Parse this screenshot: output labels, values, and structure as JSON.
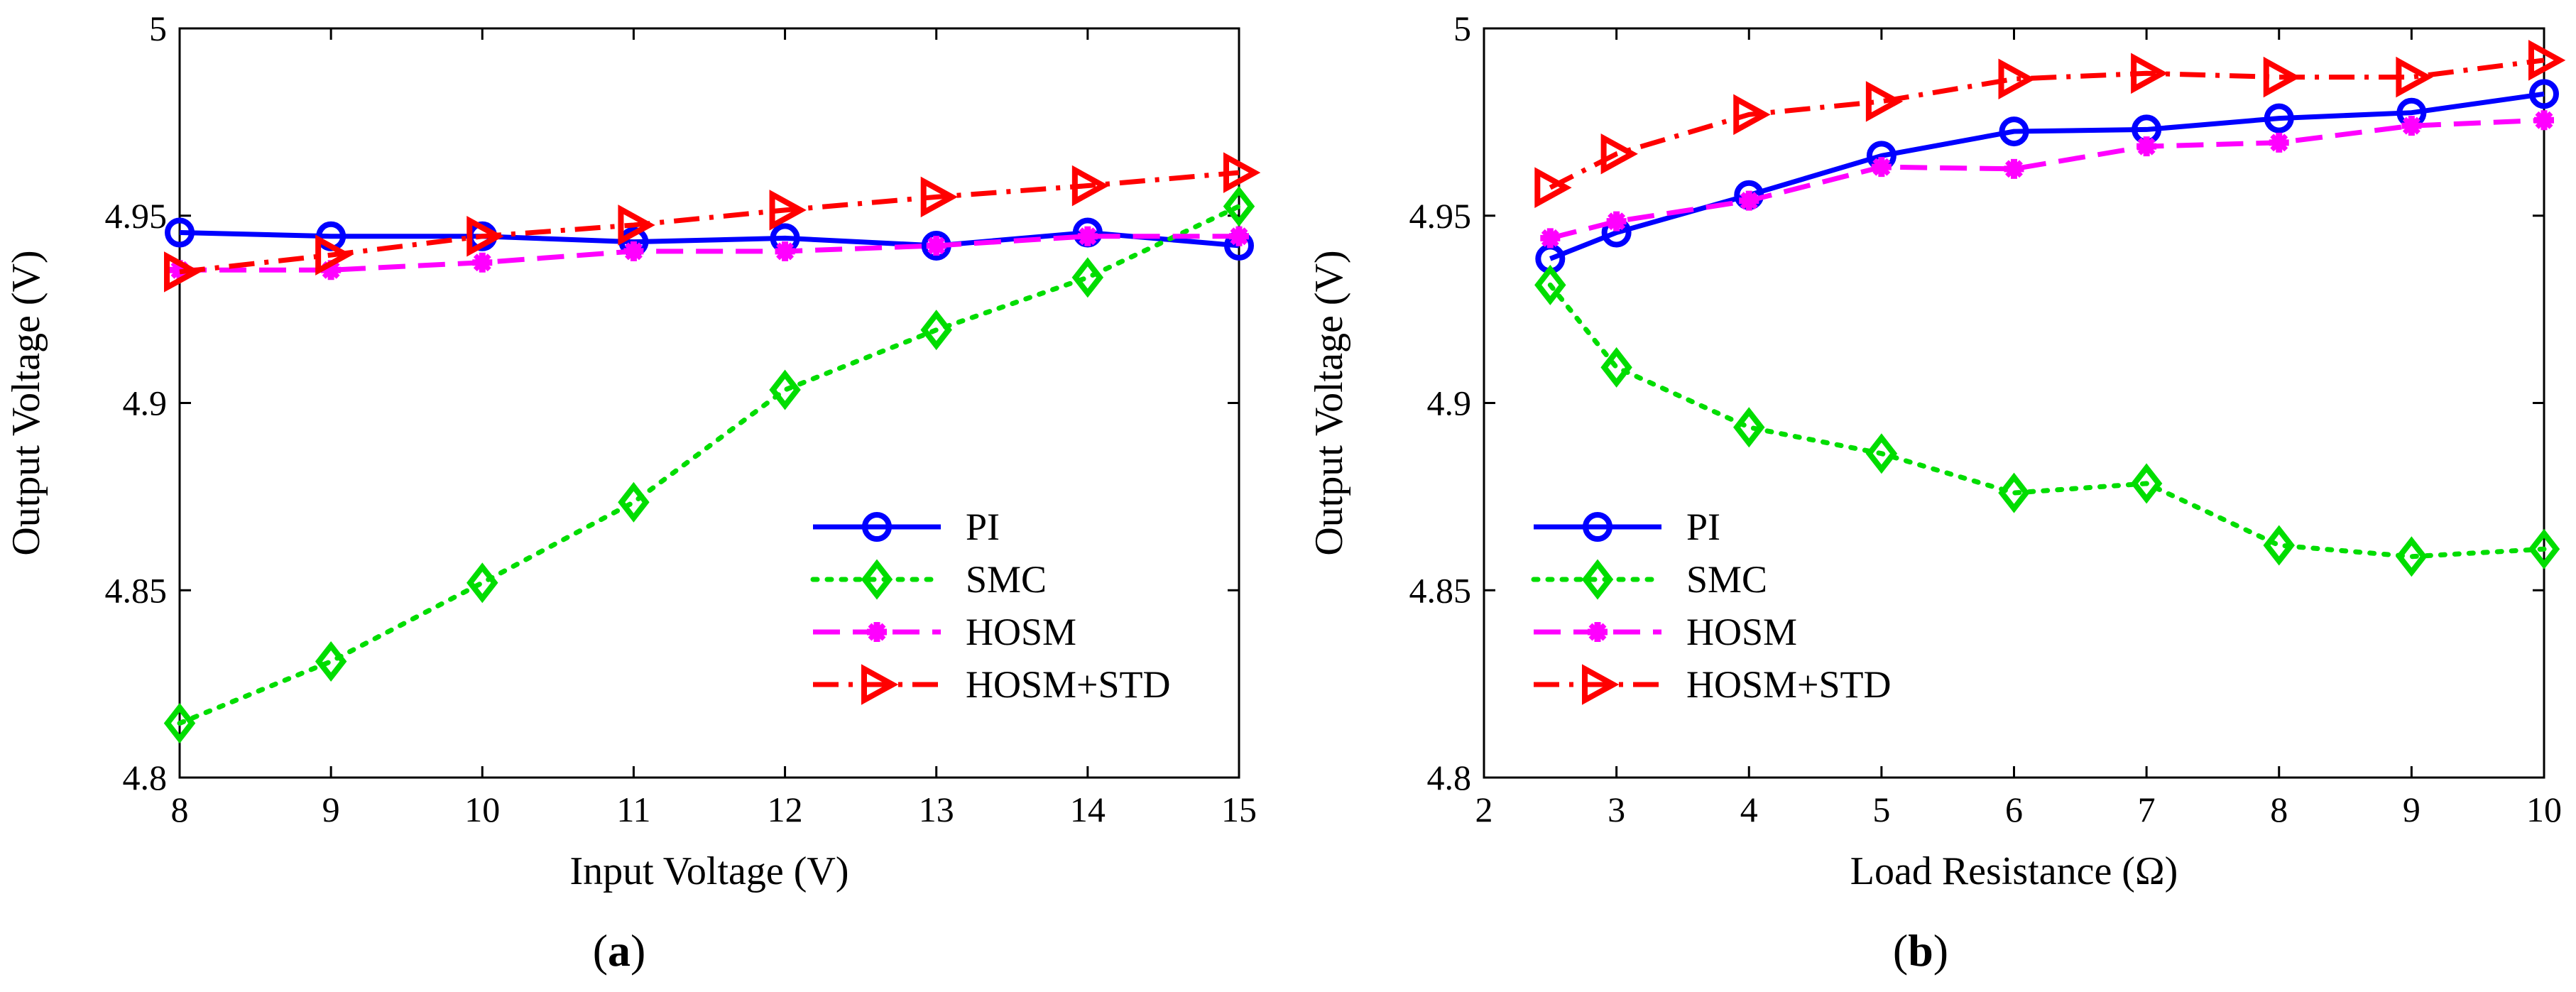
{
  "chart_data": [
    {
      "type": "line",
      "caption_prefix": "(",
      "caption_letter": "a",
      "caption_suffix": ")",
      "xlabel": "Input Voltage (V)",
      "ylabel": "Output Voltage (V)",
      "xlim": [
        8,
        15
      ],
      "ylim": [
        4.8,
        5.0
      ],
      "xticks": [
        8,
        9,
        10,
        11,
        12,
        13,
        14,
        15
      ],
      "yticks": [
        4.8,
        4.85,
        4.9,
        4.95,
        5
      ],
      "ytick_labels": [
        "4.8",
        "4.85",
        "4.9",
        "4.95",
        "5"
      ],
      "legend_position": "bottom-right",
      "x": [
        8,
        9,
        10,
        11,
        12,
        13,
        14,
        15
      ],
      "series": [
        {
          "name": "PI",
          "color": "#0000ff",
          "marker": "circle",
          "dash": "solid",
          "values": [
            4.9455,
            4.9445,
            4.9445,
            4.943,
            4.944,
            4.942,
            4.9455,
            4.942
          ]
        },
        {
          "name": "SMC",
          "color": "#00dd00",
          "marker": "diamond",
          "dash": "dotted",
          "values": [
            4.8145,
            4.831,
            4.852,
            4.8735,
            4.9035,
            4.9195,
            4.9335,
            4.9525
          ]
        },
        {
          "name": "HOSM",
          "color": "#ff00ff",
          "marker": "star",
          "dash": "dashed",
          "values": [
            4.9355,
            4.9355,
            4.9375,
            4.9405,
            4.9405,
            4.942,
            4.9445,
            4.9445
          ]
        },
        {
          "name": "HOSM+STD",
          "color": "#ff0000",
          "marker": "triangle-right",
          "dash": "dashdot",
          "values": [
            4.935,
            4.9395,
            4.9445,
            4.9475,
            4.9515,
            4.955,
            4.958,
            4.9615
          ]
        }
      ]
    },
    {
      "type": "line",
      "caption_prefix": "(",
      "caption_letter": "b",
      "caption_suffix": ")",
      "xlabel": "Load Resistance (Ω)",
      "ylabel": "Output Voltage (V)",
      "xlim": [
        2,
        10
      ],
      "ylim": [
        4.8,
        5.0
      ],
      "xticks": [
        2,
        3,
        4,
        5,
        6,
        7,
        8,
        9,
        10
      ],
      "yticks": [
        4.8,
        4.85,
        4.9,
        4.95,
        5
      ],
      "ytick_labels": [
        "4.8",
        "4.85",
        "4.9",
        "4.95",
        "5"
      ],
      "legend_position": "bottom-center",
      "x": [
        2.5,
        3,
        4,
        5,
        6,
        7,
        8,
        9,
        10
      ],
      "series": [
        {
          "name": "PI",
          "color": "#0000ff",
          "marker": "circle",
          "dash": "solid",
          "values": [
            4.9385,
            4.9455,
            4.9555,
            4.966,
            4.9725,
            4.973,
            4.976,
            4.9775,
            4.9825
          ]
        },
        {
          "name": "SMC",
          "color": "#00dd00",
          "marker": "diamond",
          "dash": "dotted",
          "values": [
            4.9315,
            4.9095,
            4.8935,
            4.8865,
            4.876,
            4.8785,
            4.862,
            4.859,
            4.861
          ]
        },
        {
          "name": "HOSM",
          "color": "#ff00ff",
          "marker": "star",
          "dash": "dashed",
          "values": [
            4.944,
            4.9485,
            4.954,
            4.963,
            4.9625,
            4.9685,
            4.9695,
            4.974,
            4.9755
          ]
        },
        {
          "name": "HOSM+STD",
          "color": "#ff0000",
          "marker": "triangle-right",
          "dash": "dashdot",
          "values": [
            4.9575,
            4.9665,
            4.977,
            4.9805,
            4.9865,
            4.988,
            4.987,
            4.987,
            4.9915
          ]
        }
      ]
    }
  ]
}
